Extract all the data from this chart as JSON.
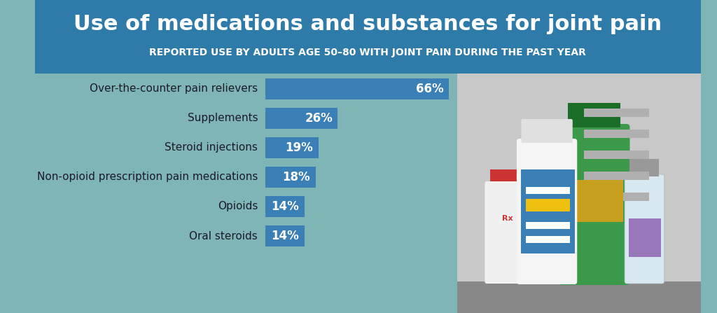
{
  "title": "Use of medications and substances for joint pain",
  "subtitle": "REPORTED USE BY ADULTS AGE 50–80 WITH JOINT PAIN DURING THE PAST YEAR",
  "categories": [
    "Over-the-counter pain relievers",
    "Supplements",
    "Steroid injections",
    "Non-opioid prescription pain medications",
    "Opioids",
    "Oral steroids"
  ],
  "values": [
    66,
    26,
    19,
    18,
    14,
    14
  ],
  "bar_color": "#3a7fb5",
  "header_bg": "#2e7baa",
  "body_bg": "#7fb5b5",
  "right_bg": "#d0d0d0",
  "title_color": "#ffffff",
  "subtitle_color": "#ffffff",
  "label_color": "#1a1a2e",
  "value_color": "#ffffff",
  "bar_max": 75,
  "title_fontsize": 22,
  "subtitle_fontsize": 10,
  "label_fontsize": 11,
  "value_fontsize": 12
}
